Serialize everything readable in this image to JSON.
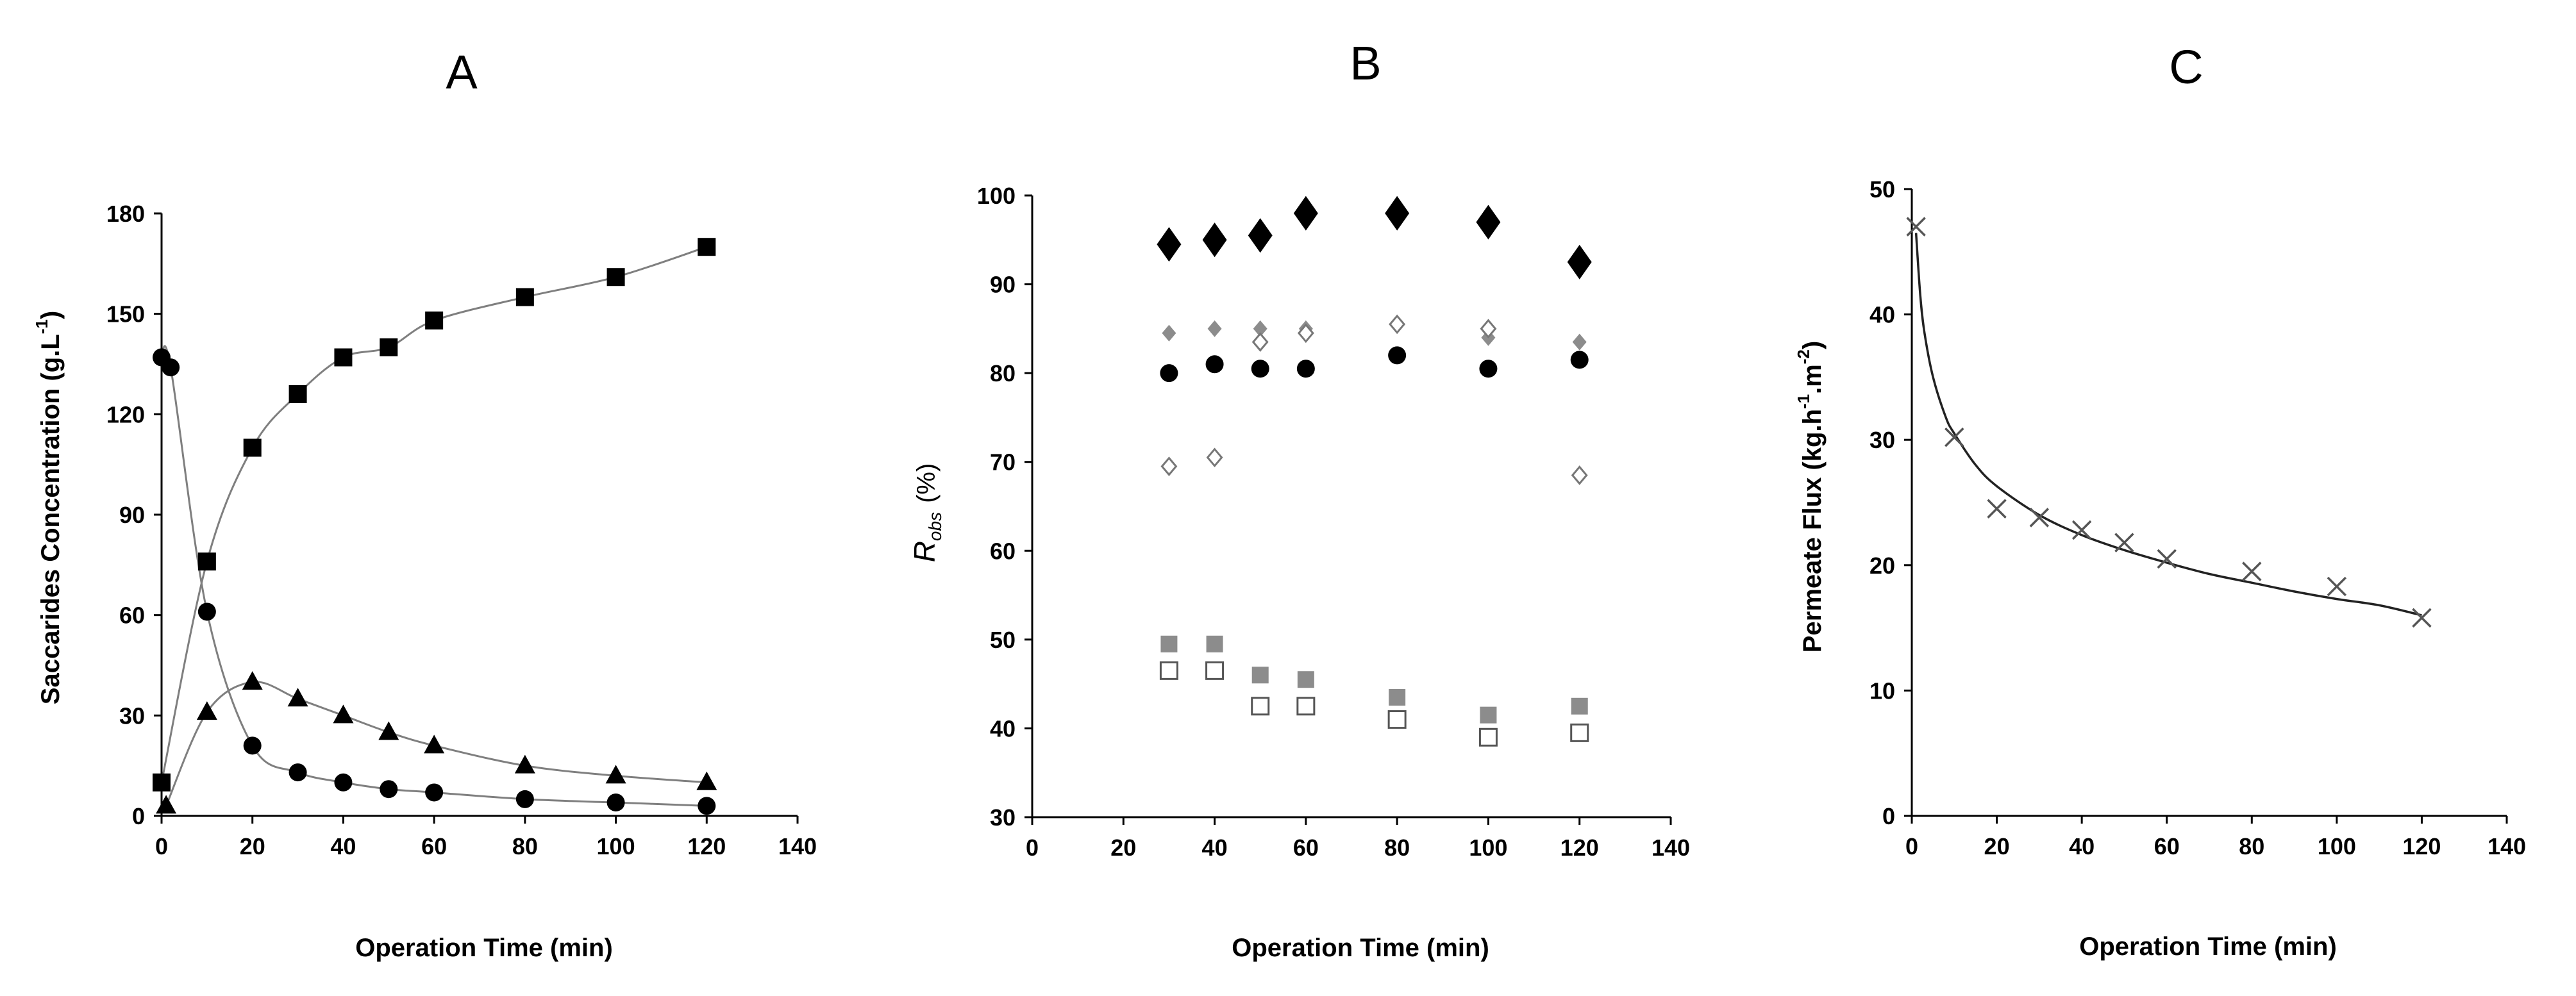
{
  "colors": {
    "black": "#000000",
    "gray_marker": "#8c8c8c",
    "open_diamond_stroke": "#777777",
    "line_gray": "#7f7f7f"
  },
  "chart_data": [
    {
      "panel": "A",
      "type": "scatter",
      "title": "A",
      "xlabel": "Operation Time (min)",
      "ylabel": "Saccarides Concentration (g.L",
      "ylabel_sup": "-1",
      "ylabel_end": ")",
      "xlim": [
        0,
        140
      ],
      "ylim": [
        0,
        180
      ],
      "xticks": [
        0,
        20,
        40,
        60,
        80,
        100,
        120,
        140
      ],
      "yticks": [
        0,
        30,
        60,
        90,
        120,
        150,
        180
      ],
      "series": [
        {
          "name": "squares",
          "marker": "square-filled",
          "connected": true,
          "x": [
            0,
            10,
            20,
            30,
            40,
            50,
            60,
            80,
            100,
            120
          ],
          "y": [
            10,
            76,
            110,
            126,
            137,
            140,
            148,
            155,
            161,
            170
          ]
        },
        {
          "name": "circles",
          "marker": "circle-filled",
          "connected": true,
          "x": [
            0,
            2,
            10,
            20,
            30,
            40,
            50,
            60,
            80,
            100,
            120
          ],
          "y": [
            137,
            134,
            61,
            21,
            13,
            10,
            8,
            7,
            5,
            4,
            3
          ]
        },
        {
          "name": "triangles",
          "marker": "triangle-filled",
          "connected": true,
          "x": [
            1,
            10,
            20,
            30,
            40,
            50,
            60,
            80,
            100,
            120
          ],
          "y": [
            3,
            31,
            40,
            35,
            30,
            25,
            21,
            15,
            12,
            10
          ]
        }
      ]
    },
    {
      "panel": "B",
      "type": "scatter",
      "title": "B",
      "xlabel": "Operation Time (min)",
      "ylabel_main": "R",
      "ylabel_sub": "obs",
      "ylabel_unit": "(%)",
      "xlim": [
        0,
        140
      ],
      "ylim": [
        30,
        100
      ],
      "xticks": [
        0,
        20,
        40,
        60,
        80,
        100,
        120,
        140
      ],
      "yticks": [
        30,
        40,
        50,
        60,
        70,
        80,
        90,
        100
      ],
      "series": [
        {
          "name": "large black diamonds",
          "marker": "diamond-large-filled",
          "x": [
            30,
            40,
            50,
            60,
            80,
            100,
            120
          ],
          "y": [
            94.5,
            95,
            95.5,
            98,
            98,
            97,
            92.5
          ]
        },
        {
          "name": "small gray diamonds",
          "marker": "diamond-small-gray",
          "x": [
            30,
            40,
            50,
            60,
            80,
            100,
            120
          ],
          "y": [
            84.5,
            85,
            85,
            85,
            85.5,
            84,
            83.5
          ]
        },
        {
          "name": "black circles",
          "marker": "circle-filled",
          "x": [
            30,
            40,
            50,
            60,
            80,
            100,
            120
          ],
          "y": [
            80,
            81,
            80.5,
            80.5,
            82,
            80.5,
            81.5
          ]
        },
        {
          "name": "open diamonds",
          "marker": "diamond-open",
          "x": [
            30,
            40,
            50,
            60,
            80,
            100,
            120
          ],
          "y": [
            69.5,
            70.5,
            83.5,
            84.5,
            85.5,
            85,
            68.5
          ]
        },
        {
          "name": "gray squares",
          "marker": "square-gray",
          "x": [
            30,
            40,
            50,
            60,
            80,
            100,
            120
          ],
          "y": [
            49.5,
            49.5,
            46,
            45.5,
            43.5,
            41.5,
            42.5
          ]
        },
        {
          "name": "open squares",
          "marker": "square-open",
          "x": [
            30,
            40,
            50,
            60,
            80,
            100,
            120
          ],
          "y": [
            46.5,
            46.5,
            42.5,
            42.5,
            41,
            39,
            39.5
          ]
        }
      ]
    },
    {
      "panel": "C",
      "type": "scatter",
      "title": "C",
      "xlabel": "Operation Time (min)",
      "ylabel": "Permeate Flux (kg.h",
      "ylabel_sup1": "-1",
      "ylabel_mid": ".m",
      "ylabel_sup2": "-2",
      "ylabel_end": ")",
      "xlim": [
        0,
        140
      ],
      "ylim": [
        0,
        50
      ],
      "xticks": [
        0,
        20,
        40,
        60,
        80,
        100,
        120,
        140
      ],
      "yticks": [
        0,
        10,
        20,
        30,
        40,
        50
      ],
      "series": [
        {
          "name": "permeate flux",
          "marker": "x",
          "x": [
            1,
            10,
            20,
            30,
            40,
            50,
            60,
            80,
            100,
            120
          ],
          "y": [
            47,
            30.2,
            24.5,
            23.8,
            22.8,
            21.8,
            20.5,
            19.5,
            18.3,
            15.8
          ]
        }
      ],
      "fit": {
        "name": "power-law fit",
        "x": [
          1,
          2,
          3,
          5,
          8,
          10,
          15,
          20,
          30,
          40,
          50,
          60,
          70,
          80,
          90,
          100,
          110,
          120
        ],
        "y": [
          46.5,
          41.5,
          38.5,
          35.0,
          31.8,
          30.5,
          28.0,
          26.3,
          24.0,
          22.4,
          21.2,
          20.2,
          19.3,
          18.6,
          17.9,
          17.3,
          16.8,
          16.0
        ]
      }
    }
  ]
}
